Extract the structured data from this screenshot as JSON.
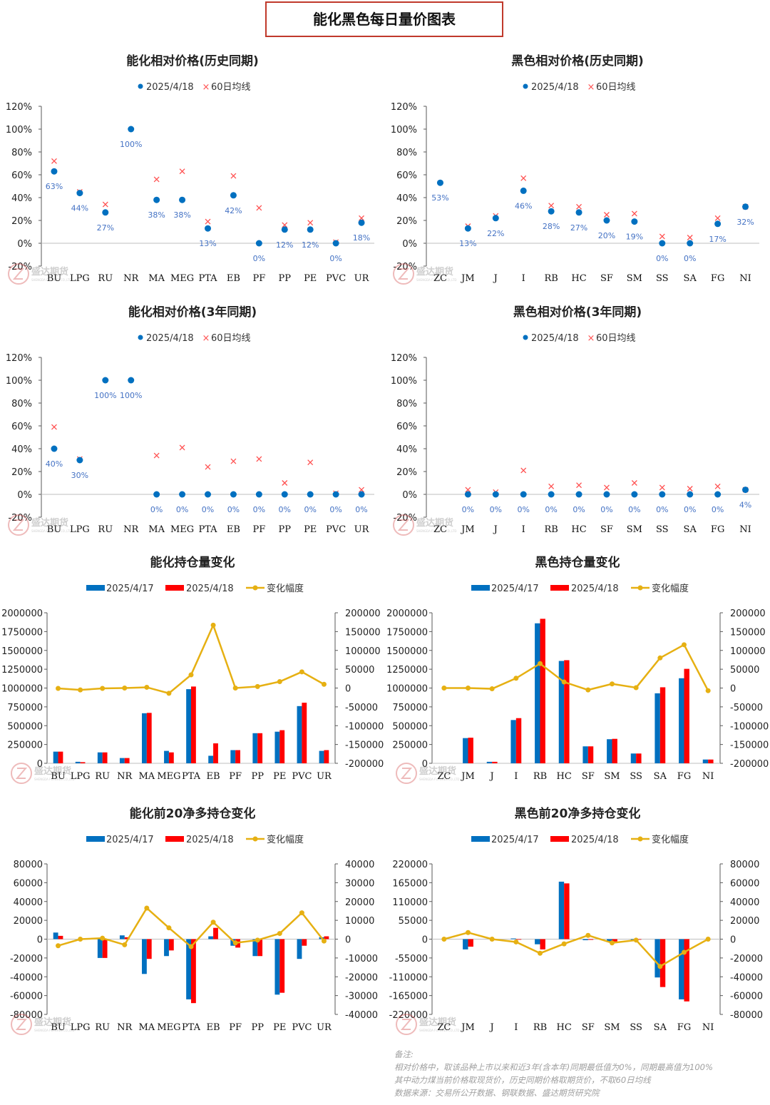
{
  "main_title": "能化黑色每日量价图表",
  "watermark": {
    "cn": "盛达期货",
    "en": "SHENGDA FUTURES CO.,LTD"
  },
  "colors": {
    "blue": "#0070c0",
    "red": "#ff0000",
    "gold": "#e6b012",
    "axis": "#595959",
    "label_blue": "#4472c4",
    "cross": "#ff5050"
  },
  "notes": {
    "heading": "备注:",
    "lines": [
      "相对价格中，取该品种上市以来和近3年(含本年)同期最低值为0%，同期最高值为100%",
      "其中动力煤当前价格取现货价，历史同期价格取期货价，不取60日均线",
      "数据来源：交易所公开数据、钢联数据、盛达期货研究院"
    ]
  },
  "chart_data": [
    {
      "id": "chem-hist",
      "type": "scatter",
      "title": "能化相对价格(历史同期)",
      "legend": [
        "2025/4/18",
        "60日均线"
      ],
      "categories": [
        "BU",
        "LPG",
        "RU",
        "NR",
        "MA",
        "MEG",
        "PTA",
        "EB",
        "PF",
        "PP",
        "PE",
        "PVC",
        "UR"
      ],
      "current": [
        63,
        44,
        27,
        100,
        38,
        38,
        13,
        42,
        0,
        12,
        12,
        0,
        18
      ],
      "labels": [
        "63%",
        "44%",
        "27%",
        "100%",
        "38%",
        "38%",
        "13%",
        "42%",
        "0%",
        "12%",
        "12%",
        "0%",
        "18%"
      ],
      "ma60": [
        72,
        45,
        34,
        null,
        56,
        63,
        19,
        59,
        31,
        16,
        18,
        1,
        22
      ],
      "yticks": [
        "120%",
        "100%",
        "80%",
        "60%",
        "40%",
        "20%",
        "0%",
        "-20%"
      ],
      "ylim": [
        -20,
        120
      ]
    },
    {
      "id": "ferrous-hist",
      "type": "scatter",
      "title": "黑色相对价格(历史同期)",
      "legend": [
        "2025/4/18",
        "60日均线"
      ],
      "categories": [
        "ZC",
        "JM",
        "J",
        "I",
        "RB",
        "HC",
        "SF",
        "SM",
        "SS",
        "SA",
        "FG",
        "NI"
      ],
      "current": [
        53,
        13,
        22,
        46,
        28,
        27,
        20,
        19,
        0,
        0,
        17,
        32
      ],
      "labels": [
        "53%",
        "13%",
        "22%",
        "46%",
        "28%",
        "27%",
        "20%",
        "19%",
        "0%",
        "0%",
        "17%",
        "32%"
      ],
      "ma60": [
        null,
        15,
        24,
        57,
        33,
        32,
        25,
        26,
        6,
        5,
        22,
        32
      ],
      "yticks": [
        "120%",
        "100%",
        "80%",
        "60%",
        "40%",
        "20%",
        "0%",
        "-20%"
      ],
      "ylim": [
        -20,
        120
      ]
    },
    {
      "id": "chem-3y",
      "type": "scatter",
      "title": "能化相对价格(3年同期)",
      "legend": [
        "2025/4/18",
        "60日均线"
      ],
      "categories": [
        "BU",
        "LPG",
        "RU",
        "NR",
        "MA",
        "MEG",
        "PTA",
        "EB",
        "PF",
        "PP",
        "PE",
        "PVC",
        "UR"
      ],
      "current": [
        40,
        30,
        100,
        100,
        0,
        0,
        0,
        0,
        0,
        0,
        0,
        0,
        0
      ],
      "labels": [
        "40%",
        "30%",
        "100%",
        "100%",
        "0%",
        "0%",
        "0%",
        "0%",
        "0%",
        "0%",
        "0%",
        "0%",
        "0%"
      ],
      "ma60": [
        59,
        31,
        null,
        null,
        34,
        41,
        24,
        29,
        31,
        10,
        28,
        1,
        4
      ],
      "yticks": [
        "120%",
        "100%",
        "80%",
        "60%",
        "40%",
        "20%",
        "0%",
        "-20%"
      ],
      "ylim": [
        -20,
        120
      ]
    },
    {
      "id": "ferrous-3y",
      "type": "scatter",
      "title": "黑色相对价格(3年同期)",
      "legend": [
        "2025/4/18",
        "60日均线"
      ],
      "categories": [
        "ZC",
        "JM",
        "J",
        "I",
        "RB",
        "HC",
        "SF",
        "SM",
        "SS",
        "SA",
        "FG",
        "NI"
      ],
      "current": [
        null,
        0,
        0,
        0,
        0,
        0,
        0,
        0,
        0,
        0,
        0,
        4
      ],
      "labels": [
        "",
        "0%",
        "0%",
        "0%",
        "0%",
        "0%",
        "0%",
        "0%",
        "0%",
        "0%",
        "0%",
        "4%"
      ],
      "ma60": [
        null,
        4,
        2,
        21,
        7,
        8,
        6,
        10,
        6,
        5,
        7,
        4
      ],
      "yticks": [
        "120%",
        "100%",
        "80%",
        "60%",
        "40%",
        "20%",
        "0%",
        "-20%"
      ],
      "ylim": [
        -20,
        120
      ]
    },
    {
      "id": "chem-oi",
      "type": "bar",
      "title": "能化持仓量变化",
      "legend": [
        "2025/4/17",
        "2025/4/18",
        "变化幅度"
      ],
      "categories": [
        "BU",
        "LPG",
        "RU",
        "NR",
        "MA",
        "MEG",
        "PTA",
        "EB",
        "PF",
        "PP",
        "PE",
        "PVC",
        "UR"
      ],
      "series": [
        {
          "name": "2025/4/17",
          "values": [
            155000,
            20000,
            145000,
            70000,
            665000,
            165000,
            985000,
            100000,
            175000,
            400000,
            420000,
            760000,
            165000
          ]
        },
        {
          "name": "2025/4/18",
          "values": [
            155000,
            15000,
            145000,
            70000,
            670000,
            145000,
            1020000,
            265000,
            175000,
            400000,
            440000,
            805000,
            175000
          ]
        }
      ],
      "line": {
        "name": "变化幅度",
        "values": [
          -1000,
          -5000,
          -1000,
          0,
          2000,
          -14000,
          35000,
          167000,
          0,
          4000,
          17000,
          43000,
          10000
        ]
      },
      "ylim": [
        0,
        2000000
      ],
      "ylim2": [
        -200000,
        200000
      ],
      "yticks": [
        "2000000",
        "1750000",
        "1500000",
        "1250000",
        "1000000",
        "750000",
        "500000",
        "250000",
        "0"
      ],
      "y2ticks": [
        "200000",
        "150000",
        "100000",
        "50000",
        "0",
        "-50000",
        "-100000",
        "-150000",
        "-200000"
      ]
    },
    {
      "id": "ferrous-oi",
      "type": "bar",
      "title": "黑色持仓量变化",
      "legend": [
        "2025/4/17",
        "2025/4/18",
        "变化幅度"
      ],
      "categories": [
        "ZC",
        "JM",
        "J",
        "I",
        "RB",
        "HC",
        "SF",
        "SM",
        "SS",
        "SA",
        "FG",
        "NI"
      ],
      "series": [
        {
          "name": "2025/4/17",
          "values": [
            0,
            335000,
            20000,
            575000,
            1860000,
            1360000,
            225000,
            320000,
            130000,
            930000,
            1130000,
            50000
          ]
        },
        {
          "name": "2025/4/18",
          "values": [
            0,
            340000,
            20000,
            600000,
            1920000,
            1370000,
            225000,
            325000,
            130000,
            1010000,
            1255000,
            50000
          ]
        }
      ],
      "line": {
        "name": "变化幅度",
        "values": [
          0,
          0,
          -2000,
          26000,
          65000,
          16000,
          -5000,
          11000,
          1000,
          80000,
          115000,
          -7000
        ]
      },
      "ylim": [
        0,
        2000000
      ],
      "ylim2": [
        -200000,
        200000
      ],
      "yticks": [
        "2000000",
        "1750000",
        "1500000",
        "1250000",
        "1000000",
        "750000",
        "500000",
        "250000",
        "0"
      ],
      "y2ticks": [
        "200000",
        "150000",
        "100000",
        "50000",
        "0",
        "-50000",
        "-100000",
        "-150000",
        "-200000"
      ]
    },
    {
      "id": "chem-net",
      "type": "bar",
      "title": "能化前20净多持仓变化",
      "legend": [
        "2025/4/17",
        "2025/4/18",
        "变化幅度"
      ],
      "categories": [
        "BU",
        "LPG",
        "RU",
        "NR",
        "MA",
        "MEG",
        "PTA",
        "EB",
        "PF",
        "PP",
        "PE",
        "PVC",
        "UR"
      ],
      "series": [
        {
          "name": "2025/4/17",
          "values": [
            7000,
            0,
            -20000,
            4000,
            -37000,
            -18000,
            -64000,
            3000,
            -7000,
            -18000,
            -59000,
            -21000,
            2000
          ]
        },
        {
          "name": "2025/4/18",
          "values": [
            3500,
            0,
            -20000,
            2000,
            -21000,
            -12000,
            -68000,
            12000,
            -9000,
            -18000,
            -57000,
            -7000,
            3000
          ]
        }
      ],
      "line": {
        "name": "变化幅度",
        "values": [
          -3500,
          0,
          500,
          -3000,
          16500,
          6000,
          -4000,
          9000,
          -2000,
          -500,
          3000,
          14000,
          -1000
        ]
      },
      "ylim": [
        -80000,
        80000
      ],
      "ylim2": [
        -40000,
        40000
      ],
      "yticks": [
        "80000",
        "60000",
        "40000",
        "20000",
        "0",
        "-20000",
        "-40000",
        "-60000",
        "-80000"
      ],
      "y2ticks": [
        "40000",
        "30000",
        "20000",
        "10000",
        "0",
        "-10000",
        "-20000",
        "-30000",
        "-40000"
      ]
    },
    {
      "id": "ferrous-net",
      "type": "bar",
      "title": "黑色前20净多持仓变化",
      "legend": [
        "2025/4/17",
        "2025/4/18",
        "变化幅度"
      ],
      "categories": [
        "ZC",
        "JM",
        "J",
        "I",
        "RB",
        "HC",
        "SF",
        "SM",
        "SS",
        "SA",
        "FG",
        "NI"
      ],
      "series": [
        {
          "name": "2025/4/17",
          "values": [
            0,
            -30000,
            0,
            2000,
            -15000,
            168000,
            -3000,
            -7000,
            -2000,
            -112000,
            -176000,
            0
          ]
        },
        {
          "name": "2025/4/18",
          "values": [
            0,
            -22000,
            0,
            -1000,
            -30000,
            163000,
            -2000,
            -7000,
            -1000,
            -140000,
            -182000,
            0
          ]
        }
      ],
      "line": {
        "name": "变化幅度",
        "values": [
          0,
          7000,
          0,
          -3000,
          -15000,
          -5000,
          4000,
          -4000,
          -1000,
          -29000,
          -14000,
          0
        ]
      },
      "ylim": [
        -220000,
        220000
      ],
      "ylim2": [
        -80000,
        80000
      ],
      "yticks": [
        "220000",
        "165000",
        "110000",
        "55000",
        "0",
        "-55000",
        "-110000",
        "-165000",
        "-220000"
      ],
      "y2ticks": [
        "80000",
        "60000",
        "40000",
        "20000",
        "0",
        "-20000",
        "-40000",
        "-60000",
        "-80000"
      ]
    }
  ]
}
